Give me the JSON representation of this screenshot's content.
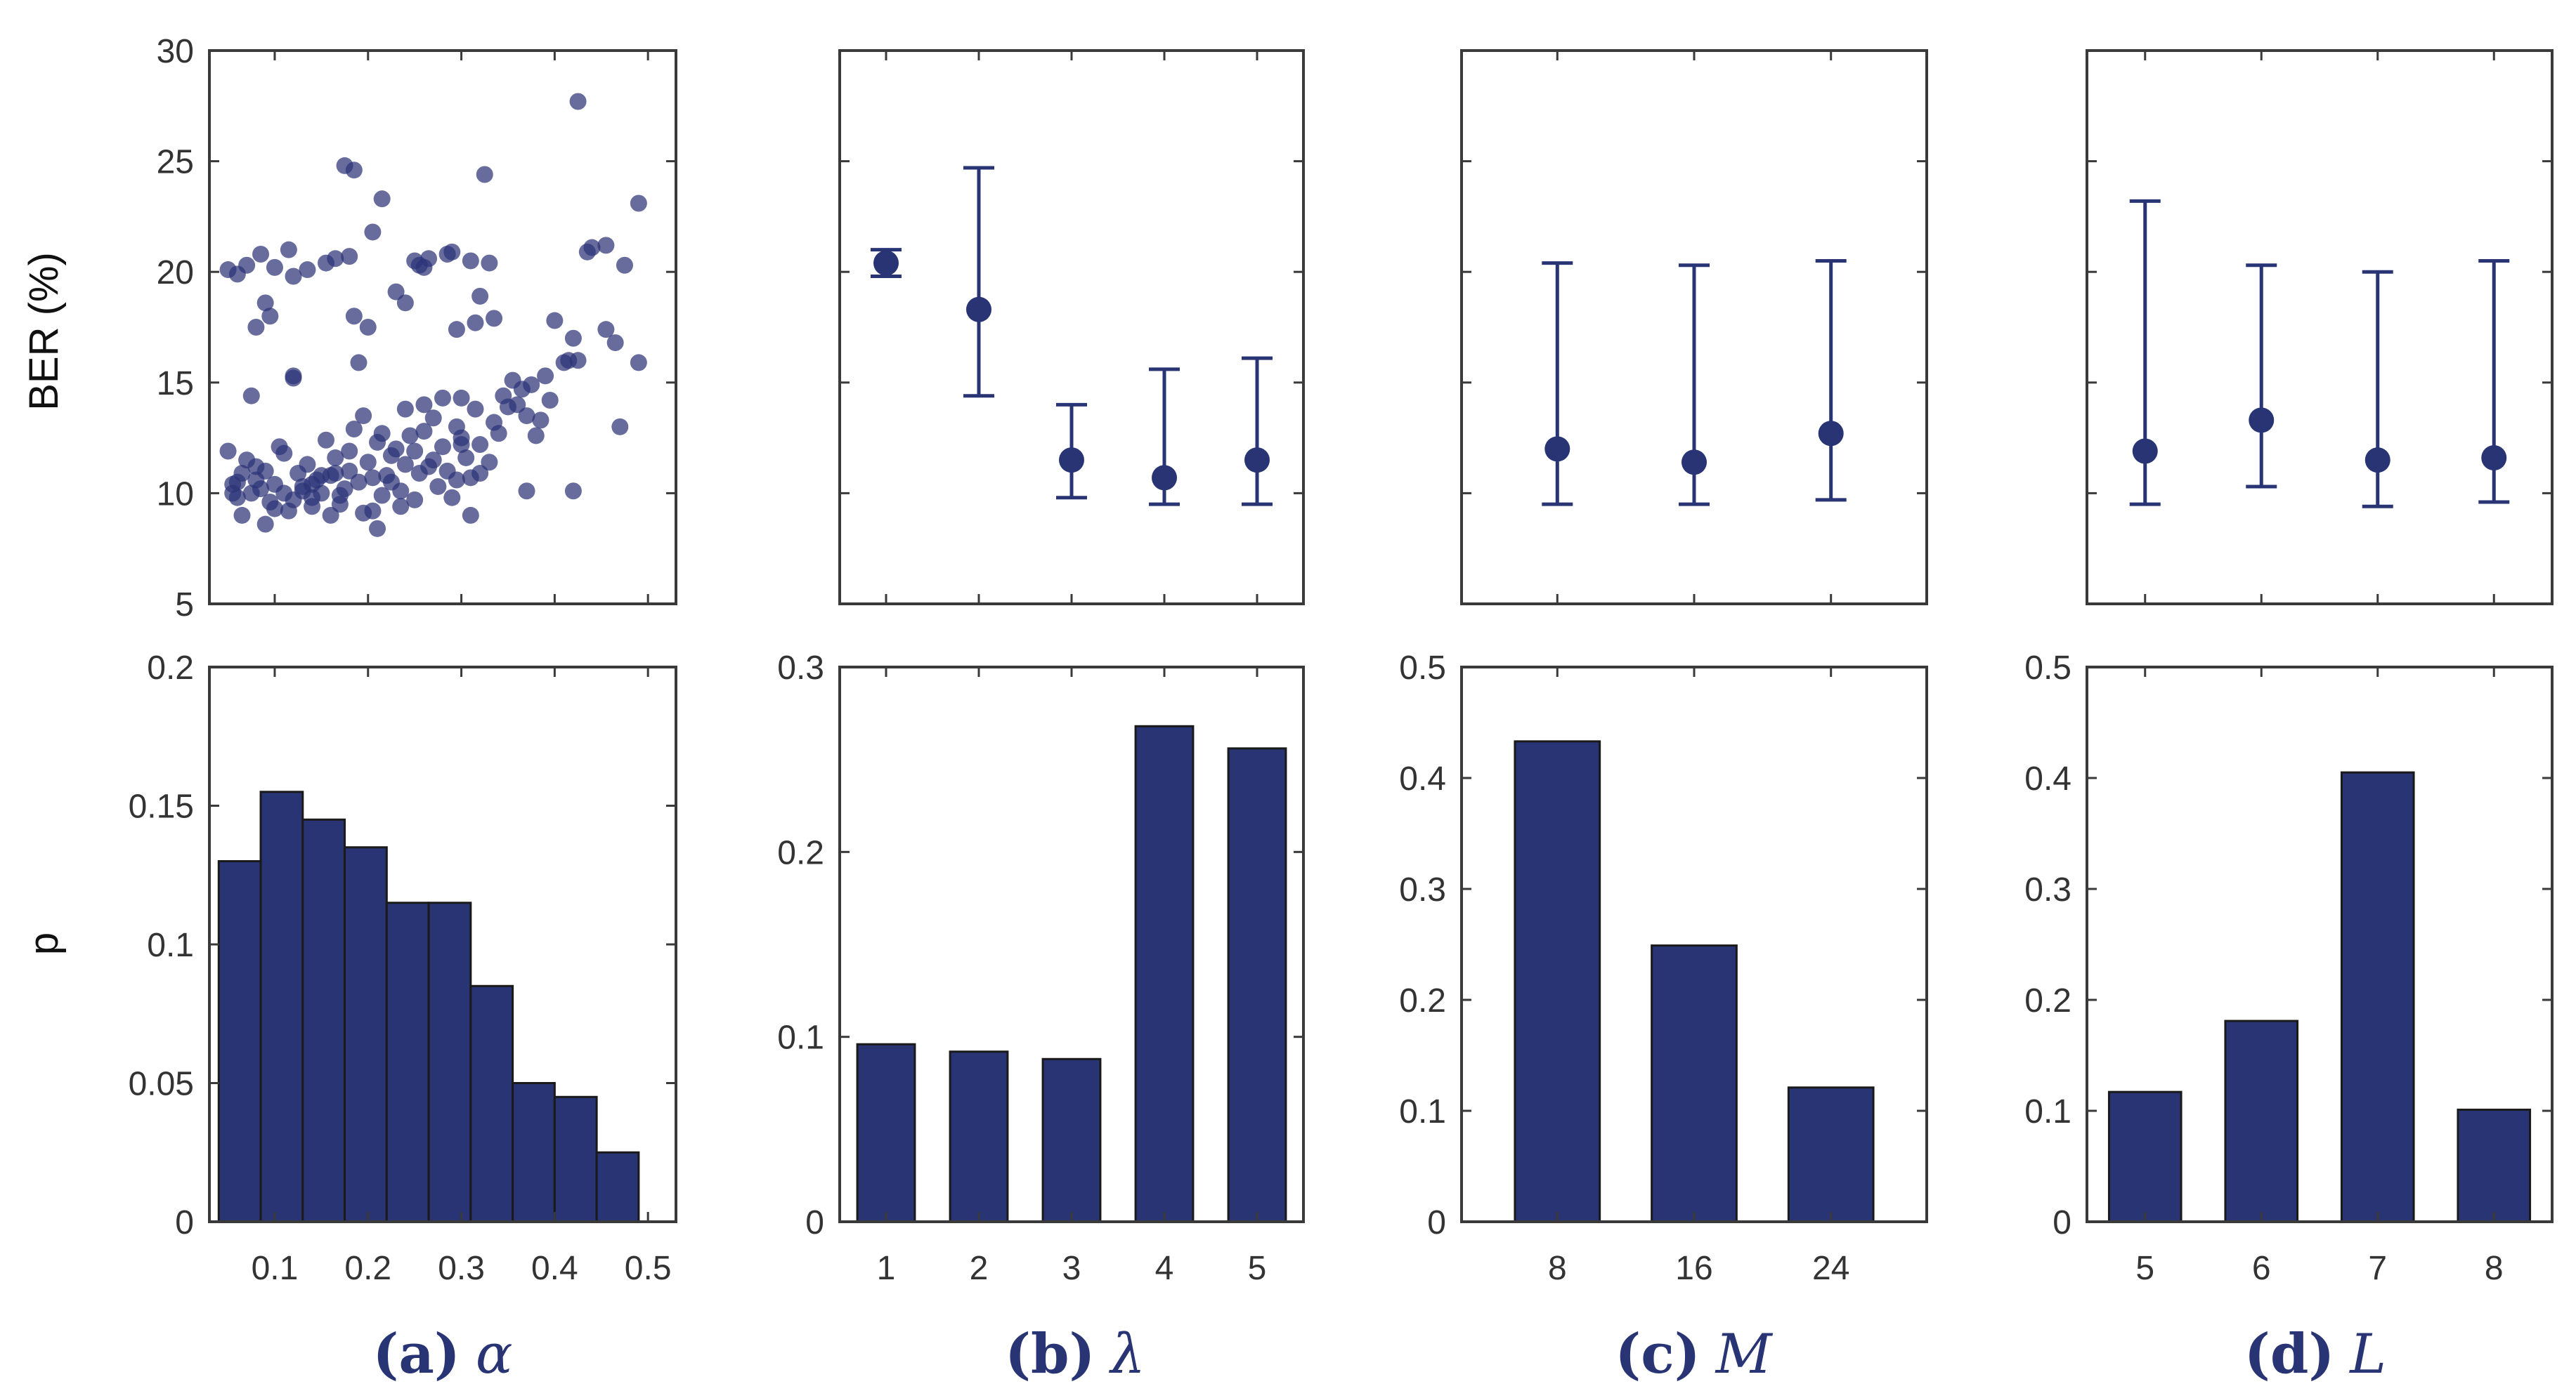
{
  "colors": {
    "primary": "#283474",
    "scatter": "#2c3377",
    "frame": "#3a3a3a",
    "text": "#333333"
  },
  "shared": {
    "top_ylabel": "BER (%)",
    "bottom_ylabel": "p",
    "top_ylim": [
      5,
      30
    ],
    "top_yticks": [
      5,
      10,
      15,
      20,
      25,
      30
    ]
  },
  "chart_data": [
    {
      "id": "a",
      "caption_label": "(a)",
      "caption_symbol": "α",
      "xlim": [
        0.03,
        0.53
      ],
      "xticks": [
        0.1,
        0.2,
        0.3,
        0.4,
        0.5
      ],
      "top": {
        "type": "scatter",
        "ylabel": "BER (%)",
        "points": [
          [
            0.05,
            20.1
          ],
          [
            0.06,
            19.9
          ],
          [
            0.07,
            20.3
          ],
          [
            0.085,
            20.8
          ],
          [
            0.09,
            18.6
          ],
          [
            0.095,
            18.0
          ],
          [
            0.1,
            20.2
          ],
          [
            0.115,
            21.0
          ],
          [
            0.12,
            19.8
          ],
          [
            0.135,
            20.1
          ],
          [
            0.155,
            20.4
          ],
          [
            0.165,
            20.6
          ],
          [
            0.18,
            20.7
          ],
          [
            0.185,
            18.0
          ],
          [
            0.2,
            17.5
          ],
          [
            0.205,
            21.8
          ],
          [
            0.215,
            23.3
          ],
          [
            0.23,
            19.1
          ],
          [
            0.24,
            18.6
          ],
          [
            0.25,
            20.5
          ],
          [
            0.255,
            20.3
          ],
          [
            0.265,
            20.6
          ],
          [
            0.285,
            20.8
          ],
          [
            0.29,
            20.9
          ],
          [
            0.295,
            17.4
          ],
          [
            0.31,
            20.5
          ],
          [
            0.315,
            17.7
          ],
          [
            0.32,
            18.9
          ],
          [
            0.33,
            20.4
          ],
          [
            0.335,
            17.9
          ],
          [
            0.175,
            24.8
          ],
          [
            0.185,
            24.6
          ],
          [
            0.325,
            24.4
          ],
          [
            0.425,
            27.7
          ],
          [
            0.435,
            20.9
          ],
          [
            0.44,
            21.1
          ],
          [
            0.455,
            21.2
          ],
          [
            0.475,
            20.3
          ],
          [
            0.49,
            23.1
          ],
          [
            0.26,
            20.2
          ],
          [
            0.12,
            15.2
          ],
          [
            0.075,
            14.4
          ],
          [
            0.08,
            17.5
          ],
          [
            0.12,
            15.3
          ],
          [
            0.19,
            15.9
          ],
          [
            0.4,
            17.8
          ],
          [
            0.415,
            16.0
          ],
          [
            0.42,
            17.0
          ],
          [
            0.425,
            16.0
          ],
          [
            0.455,
            17.4
          ],
          [
            0.465,
            16.8
          ],
          [
            0.49,
            15.9
          ],
          [
            0.47,
            13.0
          ],
          [
            0.42,
            10.1
          ],
          [
            0.37,
            10.1
          ],
          [
            0.05,
            11.9
          ],
          [
            0.055,
            10.4
          ],
          [
            0.06,
            9.8
          ],
          [
            0.065,
            10.9
          ],
          [
            0.07,
            11.5
          ],
          [
            0.075,
            10.0
          ],
          [
            0.08,
            10.6
          ],
          [
            0.085,
            10.2
          ],
          [
            0.09,
            11.0
          ],
          [
            0.095,
            9.6
          ],
          [
            0.1,
            10.4
          ],
          [
            0.105,
            12.1
          ],
          [
            0.11,
            11.8
          ],
          [
            0.115,
            9.2
          ],
          [
            0.12,
            9.7
          ],
          [
            0.125,
            10.9
          ],
          [
            0.13,
            10.3
          ],
          [
            0.135,
            11.3
          ],
          [
            0.14,
            9.8
          ],
          [
            0.145,
            10.6
          ],
          [
            0.15,
            10.0
          ],
          [
            0.155,
            12.4
          ],
          [
            0.16,
            10.8
          ],
          [
            0.165,
            11.6
          ],
          [
            0.17,
            9.5
          ],
          [
            0.175,
            10.2
          ],
          [
            0.18,
            11.0
          ],
          [
            0.185,
            12.9
          ],
          [
            0.19,
            10.5
          ],
          [
            0.195,
            9.1
          ],
          [
            0.2,
            11.4
          ],
          [
            0.205,
            10.7
          ],
          [
            0.21,
            12.3
          ],
          [
            0.215,
            9.9
          ],
          [
            0.22,
            10.8
          ],
          [
            0.225,
            11.7
          ],
          [
            0.23,
            12.0
          ],
          [
            0.235,
            10.1
          ],
          [
            0.24,
            11.3
          ],
          [
            0.245,
            12.6
          ],
          [
            0.25,
            9.7
          ],
          [
            0.255,
            10.9
          ],
          [
            0.26,
            12.8
          ],
          [
            0.265,
            11.2
          ],
          [
            0.27,
            13.4
          ],
          [
            0.275,
            10.3
          ],
          [
            0.28,
            12.1
          ],
          [
            0.285,
            11.0
          ],
          [
            0.29,
            9.8
          ],
          [
            0.295,
            13.0
          ],
          [
            0.3,
            12.5
          ],
          [
            0.305,
            11.6
          ],
          [
            0.31,
            10.7
          ],
          [
            0.315,
            13.8
          ],
          [
            0.32,
            12.2
          ],
          [
            0.33,
            11.4
          ],
          [
            0.335,
            13.2
          ],
          [
            0.34,
            12.7
          ],
          [
            0.345,
            14.4
          ],
          [
            0.35,
            13.9
          ],
          [
            0.355,
            15.1
          ],
          [
            0.36,
            14.0
          ],
          [
            0.365,
            14.7
          ],
          [
            0.37,
            13.5
          ],
          [
            0.375,
            14.9
          ],
          [
            0.38,
            12.6
          ],
          [
            0.385,
            13.3
          ],
          [
            0.39,
            15.3
          ],
          [
            0.395,
            14.2
          ],
          [
            0.41,
            15.9
          ],
          [
            0.065,
            9.0
          ],
          [
            0.09,
            8.6
          ],
          [
            0.21,
            8.4
          ],
          [
            0.205,
            9.2
          ],
          [
            0.31,
            9.0
          ],
          [
            0.16,
            9.0
          ],
          [
            0.14,
            9.4
          ],
          [
            0.055,
            10.0
          ],
          [
            0.1,
            9.3
          ],
          [
            0.13,
            10.1
          ],
          [
            0.15,
            10.8
          ],
          [
            0.17,
            9.9
          ],
          [
            0.235,
            9.4
          ],
          [
            0.25,
            11.9
          ],
          [
            0.27,
            11.5
          ],
          [
            0.3,
            12.2
          ],
          [
            0.32,
            10.9
          ],
          [
            0.06,
            10.5
          ],
          [
            0.08,
            11.2
          ],
          [
            0.11,
            10.0
          ],
          [
            0.14,
            10.4
          ],
          [
            0.165,
            10.9
          ],
          [
            0.18,
            11.9
          ],
          [
            0.195,
            13.5
          ],
          [
            0.215,
            12.7
          ],
          [
            0.225,
            10.5
          ],
          [
            0.24,
            13.8
          ],
          [
            0.26,
            14.0
          ],
          [
            0.28,
            14.3
          ],
          [
            0.3,
            14.3
          ],
          [
            0.295,
            10.6
          ]
        ]
      },
      "bottom": {
        "type": "bar",
        "ylabel": "p",
        "ylim": [
          0,
          0.2
        ],
        "yticks": [
          0,
          0.05,
          0.1,
          0.15,
          0.2
        ],
        "ytick_labels": [
          "0",
          "0.05",
          "0.1",
          "0.15",
          "0.2"
        ],
        "bin_edges": [
          0.04,
          0.085,
          0.13,
          0.175,
          0.22,
          0.265,
          0.31,
          0.355,
          0.4,
          0.445,
          0.49
        ],
        "values": [
          0.13,
          0.155,
          0.145,
          0.135,
          0.115,
          0.115,
          0.085,
          0.05,
          0.045,
          0.025
        ]
      }
    },
    {
      "id": "b",
      "caption_label": "(b)",
      "caption_symbol": "λ",
      "categories": [
        "1",
        "2",
        "3",
        "4",
        "5"
      ],
      "top": {
        "type": "errorbar",
        "mean": [
          20.4,
          18.3,
          11.5,
          10.7,
          11.5
        ],
        "lower": [
          19.8,
          14.4,
          9.8,
          9.5,
          9.5
        ],
        "upper": [
          21.0,
          24.7,
          14.0,
          15.6,
          16.1
        ]
      },
      "bottom": {
        "type": "bar",
        "ylim": [
          0,
          0.3
        ],
        "yticks": [
          0,
          0.1,
          0.2,
          0.3
        ],
        "ytick_labels": [
          "0",
          "0.1",
          "0.2",
          "0.3"
        ],
        "values": [
          0.096,
          0.092,
          0.088,
          0.268,
          0.256
        ]
      }
    },
    {
      "id": "c",
      "caption_label": "(c)",
      "caption_symbol": "M",
      "categories": [
        "8",
        "16",
        "24"
      ],
      "top": {
        "type": "errorbar",
        "mean": [
          12.0,
          11.4,
          12.7
        ],
        "lower": [
          9.5,
          9.5,
          9.7
        ],
        "upper": [
          20.4,
          20.3,
          20.5
        ]
      },
      "bottom": {
        "type": "bar",
        "ylim": [
          0,
          0.5
        ],
        "yticks": [
          0,
          0.1,
          0.2,
          0.3,
          0.4,
          0.5
        ],
        "ytick_labels": [
          "0",
          "0.1",
          "0.2",
          "0.3",
          "0.4",
          "0.5"
        ],
        "values": [
          0.433,
          0.249,
          0.121
        ]
      }
    },
    {
      "id": "d",
      "caption_label": "(d)",
      "caption_symbol": "L",
      "categories": [
        "5",
        "6",
        "7",
        "8"
      ],
      "top": {
        "type": "errorbar",
        "mean": [
          11.9,
          13.3,
          11.5,
          11.6
        ],
        "lower": [
          9.5,
          10.3,
          9.4,
          9.6
        ],
        "upper": [
          23.2,
          20.3,
          20.0,
          20.5
        ]
      },
      "bottom": {
        "type": "bar",
        "ylim": [
          0,
          0.5
        ],
        "yticks": [
          0,
          0.1,
          0.2,
          0.3,
          0.4,
          0.5
        ],
        "ytick_labels": [
          "0",
          "0.1",
          "0.2",
          "0.3",
          "0.4",
          "0.5"
        ],
        "values": [
          0.117,
          0.181,
          0.405,
          0.101
        ]
      }
    }
  ]
}
